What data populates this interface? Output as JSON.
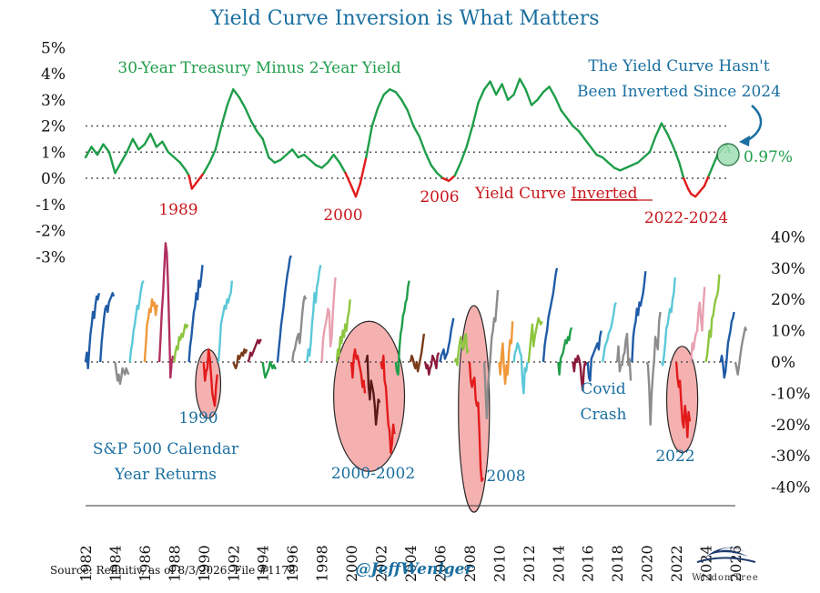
{
  "title": "Yield Curve Inversion is What Matters",
  "footer": {
    "source": "Source: Refinitiv, as of 8/3/2026. File #1178",
    "handle": "@JeffWeniger",
    "logo": "WisdomTree"
  },
  "colors": {
    "title": "#1a6fa0",
    "yield_line": "#1f9e4a",
    "inverted": "#e21b1b",
    "blue_text": "#1a6fa0",
    "circle_fill": "#f5a8a8"
  },
  "annotations": {
    "yield_series_label": "30-Year Treasury Minus 2-Year Yield",
    "callout_line1": "The Yield Curve Hasn't",
    "callout_line2": "Been Inverted Since 2024",
    "latest_value": "0.97%",
    "inverted_prefix": "Yield Curve ",
    "inverted_word": "Inverted",
    "label_1989": "1989",
    "label_2000": "2000",
    "label_2006": "2006",
    "label_2022_2024": "2022-2024",
    "label_1990": "1990",
    "label_2000_2002": "2000-2002",
    "label_2008": "2008",
    "covid_line1": "Covid",
    "covid_line2": "Crash",
    "label_2022": "2022",
    "sp_line1": "S&P 500 Calendar",
    "sp_line2": "Year Returns"
  },
  "chart_data": [
    {
      "type": "line",
      "ylim": [
        -3,
        5
      ],
      "yticks": [
        "5%",
        "4%",
        "3%",
        "2%",
        "1%",
        "0%",
        "-1%",
        "-2%",
        "-3%"
      ],
      "reference_lines": [
        0,
        1,
        2
      ],
      "series": [
        {
          "name": "30-Year Treasury Minus 2-Year Yield",
          "x": [
            1982.0,
            1982.4,
            1982.8,
            1983.2,
            1983.6,
            1984.0,
            1984.4,
            1984.8,
            1985.2,
            1985.6,
            1986.0,
            1986.4,
            1986.8,
            1987.2,
            1987.6,
            1988.0,
            1988.4,
            1988.8,
            1989.0,
            1989.2,
            1989.6,
            1990.0,
            1990.4,
            1990.8,
            1991.2,
            1991.6,
            1992.0,
            1992.4,
            1992.8,
            1993.2,
            1993.6,
            1994.0,
            1994.4,
            1994.8,
            1995.2,
            1995.6,
            1996.0,
            1996.4,
            1996.8,
            1997.2,
            1997.6,
            1998.0,
            1998.4,
            1998.8,
            1999.2,
            1999.6,
            2000.0,
            2000.3,
            2000.6,
            2001.0,
            2001.4,
            2001.8,
            2002.2,
            2002.6,
            2003.0,
            2003.4,
            2003.8,
            2004.2,
            2004.6,
            2005.0,
            2005.4,
            2005.8,
            2006.2,
            2006.6,
            2007.0,
            2007.4,
            2007.8,
            2008.2,
            2008.6,
            2009.0,
            2009.4,
            2009.8,
            2010.2,
            2010.6,
            2011.0,
            2011.4,
            2011.8,
            2012.2,
            2012.6,
            2013.0,
            2013.4,
            2013.8,
            2014.2,
            2014.6,
            2015.0,
            2015.4,
            2015.8,
            2016.2,
            2016.6,
            2017.0,
            2017.4,
            2017.8,
            2018.2,
            2018.6,
            2019.0,
            2019.4,
            2019.8,
            2020.2,
            2020.6,
            2021.0,
            2021.4,
            2021.8,
            2022.2,
            2022.5,
            2022.8,
            2023.0,
            2023.3,
            2023.6,
            2023.9,
            2024.2,
            2024.5,
            2024.8,
            2025.1,
            2025.4,
            2025.6
          ],
          "values": [
            0.8,
            1.2,
            0.9,
            1.3,
            1.0,
            0.2,
            0.6,
            1.0,
            1.5,
            1.1,
            1.3,
            1.7,
            1.2,
            1.4,
            1.0,
            0.8,
            0.6,
            0.3,
            0.1,
            -0.4,
            -0.1,
            0.2,
            0.6,
            1.1,
            2.0,
            2.8,
            3.4,
            3.1,
            2.7,
            2.2,
            1.8,
            1.5,
            0.8,
            0.6,
            0.7,
            0.9,
            1.1,
            0.8,
            0.9,
            0.7,
            0.5,
            0.4,
            0.6,
            0.9,
            0.6,
            0.2,
            -0.3,
            -0.7,
            -0.2,
            0.8,
            2.0,
            2.7,
            3.2,
            3.4,
            3.3,
            3.0,
            2.6,
            2.0,
            1.6,
            1.0,
            0.5,
            0.2,
            0.0,
            -0.1,
            0.1,
            0.6,
            1.2,
            2.0,
            2.9,
            3.4,
            3.7,
            3.2,
            3.6,
            3.0,
            3.2,
            3.8,
            3.4,
            2.8,
            3.0,
            3.3,
            3.5,
            3.1,
            2.6,
            2.3,
            2.0,
            1.8,
            1.5,
            1.2,
            0.9,
            0.8,
            0.6,
            0.4,
            0.3,
            0.4,
            0.5,
            0.6,
            0.8,
            1.0,
            1.6,
            2.1,
            1.7,
            1.2,
            0.6,
            0.0,
            -0.4,
            -0.6,
            -0.7,
            -0.5,
            -0.3,
            0.1,
            0.5,
            0.9,
            1.1,
            1.3,
            1.0
          ]
        }
      ]
    },
    {
      "type": "line",
      "title": "",
      "ylim": [
        -40,
        40
      ],
      "yticks": [
        "40%",
        "30%",
        "20%",
        "10%",
        "0%",
        "-10%",
        "-20%",
        "-30%",
        "-40%"
      ],
      "xlim": [
        1982,
        2026
      ],
      "xticks": [
        "1982",
        "1984",
        "1986",
        "1988",
        "1990",
        "1992",
        "1994",
        "1996",
        "1998",
        "2000",
        "2002",
        "2004",
        "2006",
        "2008",
        "2010",
        "2012",
        "2014",
        "2016",
        "2018",
        "2020",
        "2022",
        "2024",
        "2026"
      ],
      "years": [
        {
          "year": 1982,
          "path": [
            0,
            3,
            -2,
            4,
            9,
            12,
            16,
            14,
            18,
            21,
            20,
            22
          ],
          "color": "#1f5ba6"
        },
        {
          "year": 1983,
          "path": [
            0,
            6,
            10,
            14,
            17,
            18,
            16,
            19,
            20,
            21,
            22,
            21
          ],
          "color": "#1f5ba6"
        },
        {
          "year": 1984,
          "path": [
            0,
            -3,
            -6,
            -4,
            -7,
            -5,
            -2,
            -3,
            -4,
            -2,
            -3,
            -4
          ],
          "color": "#8c8c8c"
        },
        {
          "year": 1985,
          "path": [
            0,
            4,
            6,
            10,
            12,
            15,
            18,
            17,
            20,
            23,
            25,
            26
          ],
          "color": "#5bc8d8"
        },
        {
          "year": 1986,
          "path": [
            0,
            6,
            12,
            14,
            17,
            16,
            20,
            18,
            19,
            15,
            18,
            18
          ],
          "color": "#f0983a"
        },
        {
          "year": 1987,
          "path": [
            0,
            8,
            16,
            22,
            30,
            38,
            35,
            25,
            10,
            -5,
            0,
            2
          ],
          "color": "#b03060"
        },
        {
          "year": 1988,
          "path": [
            0,
            3,
            5,
            4,
            8,
            7,
            9,
            8,
            10,
            12,
            11,
            12
          ],
          "color": "#8cc63f"
        },
        {
          "year": 1989,
          "path": [
            0,
            5,
            8,
            12,
            16,
            18,
            22,
            20,
            26,
            24,
            27,
            31
          ],
          "color": "#1f5ba6"
        },
        {
          "year": 1990,
          "path": [
            0,
            -6,
            -3,
            -2,
            4,
            1,
            -4,
            -10,
            -12,
            -14,
            -8,
            -4
          ],
          "color": "#e21b1b"
        },
        {
          "year": 1991,
          "path": [
            0,
            5,
            12,
            14,
            16,
            18,
            17,
            20,
            19,
            21,
            22,
            26
          ],
          "color": "#5bc8d8"
        },
        {
          "year": 1992,
          "path": [
            0,
            -1,
            -2,
            -1,
            2,
            1,
            2,
            3,
            2,
            4,
            3,
            4
          ],
          "color": "#7a3b1a"
        },
        {
          "year": 1993,
          "path": [
            0,
            1,
            3,
            2,
            3,
            4,
            5,
            6,
            7,
            6,
            7,
            7
          ],
          "color": "#8c1a3a"
        },
        {
          "year": 1994,
          "path": [
            0,
            -3,
            -5,
            -4,
            -3,
            -2,
            0,
            -1,
            -2,
            -1,
            -2,
            -2
          ],
          "color": "#1f9e4a"
        },
        {
          "year": 1995,
          "path": [
            0,
            4,
            8,
            12,
            15,
            18,
            22,
            25,
            28,
            30,
            33,
            34
          ],
          "color": "#1f5ba6"
        },
        {
          "year": 1996,
          "path": [
            0,
            3,
            4,
            6,
            8,
            9,
            6,
            10,
            15,
            19,
            21,
            20
          ],
          "color": "#8c8c8c"
        },
        {
          "year": 1997,
          "path": [
            0,
            4,
            2,
            6,
            12,
            16,
            22,
            19,
            24,
            26,
            29,
            31
          ],
          "color": "#5bc8d8"
        },
        {
          "year": 1998,
          "path": [
            0,
            7,
            10,
            12,
            14,
            17,
            16,
            5,
            8,
            16,
            22,
            27
          ],
          "color": "#e8a0b0"
        },
        {
          "year": 1999,
          "path": [
            0,
            4,
            2,
            8,
            6,
            10,
            8,
            12,
            10,
            14,
            16,
            20
          ],
          "color": "#8cc63f"
        },
        {
          "year": 2000,
          "path": [
            0,
            -5,
            2,
            4,
            1,
            2,
            0,
            -2,
            -4,
            -8,
            -6,
            -10
          ],
          "color": "#e21b1b"
        },
        {
          "year": 2001,
          "path": [
            0,
            2,
            -8,
            -12,
            -6,
            -8,
            -10,
            -14,
            -20,
            -16,
            -12,
            -13
          ],
          "color": "#5a1a1a"
        },
        {
          "year": 2002,
          "path": [
            0,
            -2,
            2,
            -6,
            -8,
            -14,
            -20,
            -22,
            -29,
            -26,
            -20,
            -23
          ],
          "color": "#e21b1b"
        },
        {
          "year": 2003,
          "path": [
            0,
            -3,
            -4,
            4,
            9,
            11,
            15,
            16,
            19,
            20,
            24,
            26
          ],
          "color": "#1f9e4a"
        },
        {
          "year": 2004,
          "path": [
            0,
            2,
            1,
            -1,
            -2,
            0,
            -3,
            -1,
            1,
            3,
            6,
            9
          ],
          "color": "#7a3b1a"
        },
        {
          "year": 2005,
          "path": [
            0,
            -2,
            -1,
            -4,
            -2,
            -1,
            2,
            1,
            0,
            -2,
            2,
            3
          ],
          "color": "#8c1a3a"
        },
        {
          "year": 2006,
          "path": [
            0,
            2,
            3,
            4,
            1,
            2,
            3,
            5,
            7,
            10,
            12,
            14
          ],
          "color": "#1f5ba6"
        },
        {
          "year": 2007,
          "path": [
            0,
            1,
            -1,
            3,
            6,
            8,
            5,
            4,
            7,
            9,
            3,
            4
          ],
          "color": "#8cc63f"
        },
        {
          "year": 2008,
          "path": [
            0,
            -6,
            -8,
            -6,
            -5,
            -12,
            -14,
            -13,
            -22,
            -34,
            -38,
            -37
          ],
          "color": "#e21b1b"
        },
        {
          "year": 2009,
          "path": [
            0,
            -9,
            -18,
            -8,
            -3,
            2,
            8,
            10,
            14,
            13,
            18,
            23
          ],
          "color": "#8c8c8c"
        },
        {
          "year": 2010,
          "path": [
            0,
            -4,
            2,
            6,
            -2,
            -7,
            -1,
            -4,
            3,
            7,
            6,
            13
          ],
          "color": "#f0983a"
        },
        {
          "year": 2011,
          "path": [
            0,
            3,
            4,
            6,
            5,
            3,
            2,
            -6,
            -10,
            -2,
            -3,
            0
          ],
          "color": "#5bc8d8"
        },
        {
          "year": 2012,
          "path": [
            0,
            4,
            8,
            12,
            5,
            8,
            10,
            12,
            14,
            13,
            12,
            13
          ],
          "color": "#8cc63f"
        },
        {
          "year": 2013,
          "path": [
            0,
            5,
            8,
            10,
            14,
            16,
            18,
            20,
            22,
            25,
            28,
            30
          ],
          "color": "#1f5ba6"
        },
        {
          "year": 2014,
          "path": [
            0,
            -4,
            1,
            2,
            3,
            5,
            7,
            6,
            8,
            7,
            10,
            11
          ],
          "color": "#1f9e4a"
        },
        {
          "year": 2015,
          "path": [
            0,
            -3,
            1,
            0,
            2,
            1,
            -1,
            -6,
            -9,
            -2,
            0,
            -1
          ],
          "color": "#8c1a3a"
        },
        {
          "year": 2016,
          "path": [
            0,
            -5,
            -6,
            1,
            2,
            3,
            4,
            5,
            6,
            4,
            8,
            10
          ],
          "color": "#1f5ba6"
        },
        {
          "year": 2017,
          "path": [
            0,
            2,
            5,
            6,
            7,
            9,
            10,
            11,
            13,
            15,
            18,
            19
          ],
          "color": "#5bc8d8"
        },
        {
          "year": 2018,
          "path": [
            0,
            5,
            -3,
            -1,
            -1,
            2,
            3,
            7,
            9,
            -1,
            1,
            -6
          ],
          "color": "#8c8c8c"
        },
        {
          "year": 2019,
          "path": [
            0,
            8,
            11,
            13,
            17,
            15,
            19,
            18,
            20,
            22,
            25,
            29
          ],
          "color": "#1f5ba6"
        },
        {
          "year": 2020,
          "path": [
            0,
            -1,
            -8,
            -20,
            -10,
            -4,
            1,
            8,
            6,
            4,
            13,
            16
          ],
          "color": "#8c8c8c"
        },
        {
          "year": 2021,
          "path": [
            0,
            -1,
            2,
            6,
            11,
            12,
            15,
            17,
            16,
            20,
            22,
            27
          ],
          "color": "#5bc8d8"
        },
        {
          "year": 2022,
          "path": [
            0,
            -5,
            -8,
            -6,
            -13,
            -19,
            -21,
            -14,
            -17,
            -24,
            -16,
            -19
          ],
          "color": "#e21b1b"
        },
        {
          "year": 2023,
          "path": [
            0,
            6,
            4,
            7,
            9,
            10,
            16,
            19,
            14,
            10,
            18,
            24
          ],
          "color": "#e8a0b0"
        },
        {
          "year": 2024,
          "path": [
            0,
            2,
            6,
            10,
            8,
            14,
            15,
            18,
            20,
            21,
            23,
            28
          ],
          "color": "#8cc63f"
        },
        {
          "year": 2025,
          "path": [
            0,
            2,
            -1,
            -5,
            -3,
            1,
            6,
            8,
            10,
            13,
            14,
            16
          ],
          "color": "#1f5ba6"
        },
        {
          "year": 2026,
          "path": [
            0,
            -2,
            -4,
            -1,
            2,
            5,
            7,
            9,
            11,
            10
          ],
          "color": "#8c8c8c"
        }
      ]
    }
  ]
}
